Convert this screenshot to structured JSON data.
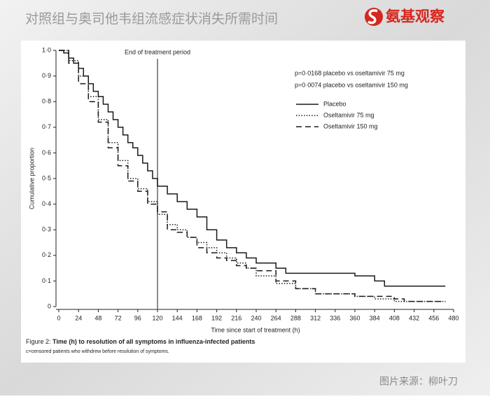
{
  "header": {
    "title": "对照组与奥司他韦组流感症状消失所需时间",
    "logo": "氨基观察"
  },
  "source": "图片来源：柳叶刀",
  "chart_data": {
    "type": "line",
    "step": true,
    "xlabel": "Time since start of treatment (h)",
    "ylabel": "Cumulative proportion",
    "xlim": [
      0,
      480
    ],
    "ylim": [
      0,
      1
    ],
    "xticks": [
      0,
      24,
      48,
      72,
      96,
      120,
      144,
      168,
      192,
      216,
      240,
      264,
      288,
      312,
      336,
      360,
      384,
      408,
      432,
      456,
      480
    ],
    "yticks": [
      0,
      {
        "value": 0.1,
        "label": "0·1"
      },
      {
        "value": 0.2,
        "label": "0·2"
      },
      {
        "value": 0.3,
        "label": "0·3"
      },
      {
        "value": 0.4,
        "label": "0·4"
      },
      {
        "value": 0.5,
        "label": "0·5"
      },
      {
        "value": 0.6,
        "label": "0·6"
      },
      {
        "value": 0.7,
        "label": "0·7"
      },
      {
        "value": 0.8,
        "label": "0·8"
      },
      {
        "value": 0.9,
        "label": "0·9"
      },
      {
        "value": 1,
        "label": "1·0"
      }
    ],
    "annotations": [
      {
        "x": 120,
        "text": "End of treatment period"
      }
    ],
    "stats": [
      "p=0·0168 placebo vs oseltamivir 75 mg",
      "p=0·0074 placebo vs oseltamivir 150 mg"
    ],
    "figure_label": "Figure 2:",
    "figure_caption": "Time (h) to resolution of all symptoms in influenza-infected patients",
    "footnote": "c=censored patients who withdrew before resolution of symptoms.",
    "series": [
      {
        "name": "Placebo",
        "color": "#1a1a1a",
        "line_style": "solid",
        "x": [
          0,
          6,
          12,
          18,
          24,
          30,
          36,
          42,
          48,
          54,
          60,
          66,
          72,
          78,
          84,
          90,
          96,
          102,
          108,
          114,
          120,
          132,
          144,
          156,
          168,
          180,
          192,
          204,
          216,
          228,
          240,
          264,
          276,
          300,
          360,
          384,
          396,
          470
        ],
        "values": [
          1,
          0.99,
          0.97,
          0.95,
          0.93,
          0.9,
          0.87,
          0.84,
          0.82,
          0.79,
          0.76,
          0.73,
          0.7,
          0.67,
          0.64,
          0.62,
          0.59,
          0.56,
          0.53,
          0.5,
          0.47,
          0.44,
          0.41,
          0.38,
          0.35,
          0.3,
          0.26,
          0.23,
          0.21,
          0.19,
          0.17,
          0.15,
          0.13,
          0.13,
          0.12,
          0.1,
          0.08,
          0.08
        ]
      },
      {
        "name": "Oseltamivir 75 mg",
        "color": "#1a1a1a",
        "line_style": "dotted",
        "x": [
          0,
          12,
          24,
          36,
          48,
          60,
          72,
          84,
          96,
          108,
          120,
          132,
          144,
          156,
          168,
          180,
          192,
          204,
          216,
          228,
          240,
          264,
          288,
          312,
          360,
          384,
          408,
          470
        ],
        "values": [
          1,
          0.96,
          0.9,
          0.82,
          0.73,
          0.64,
          0.57,
          0.5,
          0.46,
          0.41,
          0.36,
          0.32,
          0.3,
          0.27,
          0.25,
          0.23,
          0.21,
          0.19,
          0.17,
          0.15,
          0.12,
          0.09,
          0.07,
          0.05,
          0.04,
          0.03,
          0.02,
          0.02
        ]
      },
      {
        "name": "Oseltamivir 150 mg",
        "color": "#1a1a1a",
        "line_style": "dashed",
        "x": [
          0,
          12,
          24,
          36,
          48,
          60,
          72,
          84,
          96,
          108,
          120,
          132,
          144,
          156,
          168,
          180,
          192,
          204,
          216,
          228,
          240,
          264,
          288,
          312,
          360,
          408,
          420,
          470
        ],
        "values": [
          1,
          0.95,
          0.87,
          0.8,
          0.72,
          0.62,
          0.55,
          0.49,
          0.45,
          0.4,
          0.37,
          0.3,
          0.29,
          0.27,
          0.23,
          0.21,
          0.19,
          0.18,
          0.16,
          0.15,
          0.14,
          0.1,
          0.07,
          0.05,
          0.04,
          0.03,
          0.02,
          0.02
        ]
      }
    ]
  }
}
